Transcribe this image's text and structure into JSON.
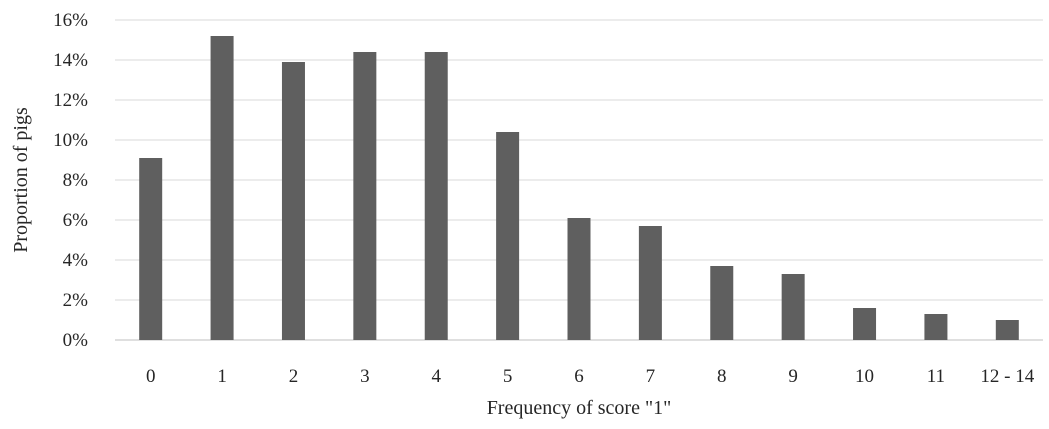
{
  "chart_data": {
    "type": "bar",
    "categories": [
      "0",
      "1",
      "2",
      "3",
      "4",
      "5",
      "6",
      "7",
      "8",
      "9",
      "10",
      "11",
      "12 - 14"
    ],
    "values": [
      9.1,
      15.2,
      13.9,
      14.4,
      14.4,
      10.4,
      6.1,
      5.7,
      3.7,
      3.3,
      1.6,
      1.3,
      1.0
    ],
    "xlabel": "Frequency of score \"1\"",
    "ylabel": "Proportion of pigs",
    "ylim": [
      0,
      16
    ],
    "yticks": [
      "0%",
      "2%",
      "4%",
      "6%",
      "8%",
      "10%",
      "12%",
      "14%",
      "16%"
    ],
    "grid": true,
    "legend": "none",
    "bar_color": "#5f5f5f"
  }
}
